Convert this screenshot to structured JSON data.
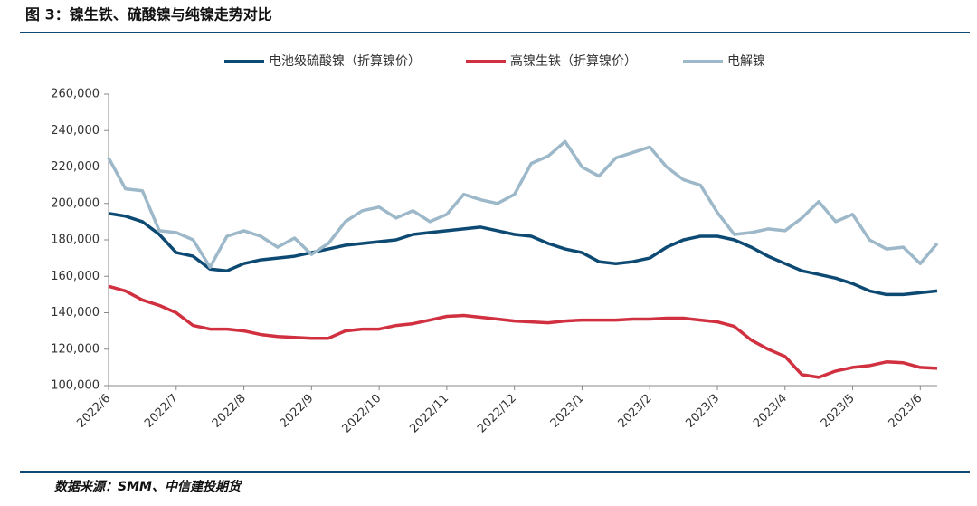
{
  "title": "图 3：镍生铁、硫酸镍与纯镍走势对比",
  "source": "数据来源：SMM、中信建投期货",
  "chart_data": {
    "type": "line",
    "categories": [
      "2022/6",
      null,
      null,
      null,
      "2022/7",
      null,
      null,
      null,
      "2022/8",
      null,
      null,
      null,
      "2022/9",
      null,
      null,
      null,
      "2022/10",
      null,
      null,
      null,
      "2022/11",
      null,
      null,
      null,
      "2022/12",
      null,
      null,
      null,
      "2023/1",
      null,
      null,
      null,
      "2023/2",
      null,
      null,
      null,
      "2023/3",
      null,
      null,
      null,
      "2023/4",
      null,
      null,
      null,
      "2023/5",
      null,
      null,
      null,
      "2023/6",
      null
    ],
    "series": [
      {
        "name": "电池级硫酸镍（折算镍价）",
        "color": "#0d4a73",
        "values": [
          194500,
          193000,
          190000,
          183000,
          173000,
          171000,
          164000,
          163000,
          167000,
          169000,
          170000,
          171000,
          173000,
          175000,
          177000,
          178000,
          179000,
          180000,
          183000,
          184000,
          185000,
          186000,
          187000,
          185000,
          183000,
          182000,
          178000,
          175000,
          173000,
          168000,
          167000,
          168000,
          170000,
          176000,
          180000,
          182000,
          182000,
          180000,
          176000,
          171000,
          167000,
          163000,
          161000,
          159000,
          156000,
          152000,
          150000,
          150000,
          151000,
          152000
        ]
      },
      {
        "name": "高镍生铁（折算镍价）",
        "color": "#d0303f",
        "values": [
          154500,
          152000,
          147000,
          144000,
          140000,
          133000,
          131000,
          131000,
          130000,
          128000,
          127000,
          126500,
          126000,
          126000,
          130000,
          131000,
          131000,
          133000,
          134000,
          136000,
          138000,
          138500,
          137500,
          136500,
          135500,
          135000,
          134500,
          135500,
          136000,
          136000,
          136000,
          136500,
          136500,
          137000,
          137000,
          136000,
          135000,
          132500,
          125000,
          120000,
          116000,
          106000,
          104500,
          108000,
          110000,
          111000,
          113000,
          112500,
          110000,
          109500
        ]
      },
      {
        "name": "电解镍",
        "color": "#9cb8c9",
        "values": [
          225000,
          208000,
          207000,
          185000,
          184000,
          180000,
          165000,
          182000,
          185000,
          182000,
          176000,
          181000,
          172000,
          178000,
          190000,
          196000,
          198000,
          192000,
          196000,
          190000,
          194000,
          205000,
          202000,
          200000,
          205000,
          222000,
          226000,
          234000,
          220000,
          215000,
          225000,
          228000,
          231000,
          220000,
          213000,
          210000,
          195000,
          183000,
          184000,
          186000,
          185000,
          192000,
          201000,
          190000,
          194000,
          180000,
          175000,
          176000,
          167000,
          178000
        ]
      }
    ],
    "ylim": [
      100000,
      260000
    ],
    "yticks": [
      {
        "value": 100000,
        "label": "100,000"
      },
      {
        "value": 120000,
        "label": "120,000"
      },
      {
        "value": 140000,
        "label": "140,000"
      },
      {
        "value": 160000,
        "label": "160,000"
      },
      {
        "value": 180000,
        "label": "180,000"
      },
      {
        "value": 200000,
        "label": "200,000"
      },
      {
        "value": 220000,
        "label": "220,000"
      },
      {
        "value": 240000,
        "label": "240,000"
      },
      {
        "value": 260000,
        "label": "260,000"
      }
    ],
    "legend": "top"
  }
}
